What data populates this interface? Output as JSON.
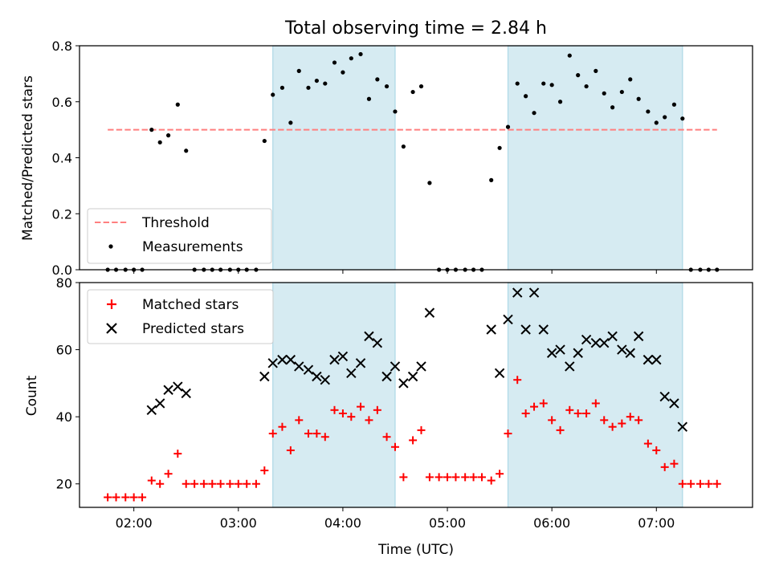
{
  "figure_title": "Total observing time = 2.84 h",
  "colors": {
    "shade": "#add8e6",
    "threshold": "#ff7f7f",
    "measurement": "#000000",
    "matched": "#ff0000",
    "predicted": "#000000"
  },
  "chart_data": [
    {
      "type": "scatter",
      "title": "Total observing time = 2.84 h",
      "xlabel": "",
      "ylabel": "Matched/Predicted stars",
      "x_unit": "hour (UTC)",
      "xlim": [
        1.48,
        7.92
      ],
      "ylim": [
        0,
        0.8
      ],
      "y_ticks": [
        "0.0",
        "0.2",
        "0.4",
        "0.6",
        "0.8"
      ],
      "shaded_intervals": [
        [
          3.33,
          4.5
        ],
        [
          5.58,
          7.25
        ]
      ],
      "legend": {
        "position": "lower left",
        "entries": [
          "Threshold",
          "Measurements"
        ]
      },
      "threshold": {
        "name": "Threshold",
        "value": 0.5,
        "x_range": [
          1.75,
          7.58
        ],
        "style": "dashed"
      },
      "series": [
        {
          "name": "Measurements",
          "marker": "dot",
          "points": [
            [
              1.75,
              0.0
            ],
            [
              1.83,
              0.0
            ],
            [
              1.92,
              0.0
            ],
            [
              2.0,
              0.0
            ],
            [
              2.08,
              0.0
            ],
            [
              2.17,
              0.5
            ],
            [
              2.25,
              0.455
            ],
            [
              2.33,
              0.48
            ],
            [
              2.42,
              0.59
            ],
            [
              2.5,
              0.425
            ],
            [
              2.58,
              0.0
            ],
            [
              2.67,
              0.0
            ],
            [
              2.75,
              0.0
            ],
            [
              2.83,
              0.0
            ],
            [
              2.92,
              0.0
            ],
            [
              3.0,
              0.0
            ],
            [
              3.08,
              0.0
            ],
            [
              3.17,
              0.0
            ],
            [
              3.25,
              0.46
            ],
            [
              3.33,
              0.625
            ],
            [
              3.42,
              0.65
            ],
            [
              3.5,
              0.525
            ],
            [
              3.58,
              0.71
            ],
            [
              3.67,
              0.65
            ],
            [
              3.75,
              0.675
            ],
            [
              3.83,
              0.665
            ],
            [
              3.92,
              0.74
            ],
            [
              4.0,
              0.705
            ],
            [
              4.08,
              0.755
            ],
            [
              4.17,
              0.77
            ],
            [
              4.25,
              0.61
            ],
            [
              4.33,
              0.68
            ],
            [
              4.42,
              0.655
            ],
            [
              4.5,
              0.565
            ],
            [
              4.58,
              0.44
            ],
            [
              4.67,
              0.635
            ],
            [
              4.75,
              0.655
            ],
            [
              4.83,
              0.31
            ],
            [
              4.92,
              0.0
            ],
            [
              5.0,
              0.0
            ],
            [
              5.08,
              0.0
            ],
            [
              5.17,
              0.0
            ],
            [
              5.25,
              0.0
            ],
            [
              5.33,
              0.0
            ],
            [
              5.42,
              0.32
            ],
            [
              5.5,
              0.435
            ],
            [
              5.58,
              0.51
            ],
            [
              5.67,
              0.665
            ],
            [
              5.75,
              0.62
            ],
            [
              5.83,
              0.56
            ],
            [
              5.92,
              0.665
            ],
            [
              6.0,
              0.66
            ],
            [
              6.08,
              0.6
            ],
            [
              6.17,
              0.765
            ],
            [
              6.25,
              0.695
            ],
            [
              6.33,
              0.655
            ],
            [
              6.42,
              0.71
            ],
            [
              6.5,
              0.63
            ],
            [
              6.58,
              0.58
            ],
            [
              6.67,
              0.635
            ],
            [
              6.75,
              0.68
            ],
            [
              6.83,
              0.61
            ],
            [
              6.92,
              0.565
            ],
            [
              7.0,
              0.525
            ],
            [
              7.08,
              0.545
            ],
            [
              7.17,
              0.59
            ],
            [
              7.25,
              0.54
            ],
            [
              7.33,
              0.0
            ],
            [
              7.42,
              0.0
            ],
            [
              7.5,
              0.0
            ],
            [
              7.58,
              0.0
            ]
          ]
        }
      ]
    },
    {
      "type": "scatter",
      "title": "",
      "xlabel": "Time (UTC)",
      "ylabel": "Count",
      "x_unit": "hour (UTC)",
      "xlim": [
        1.48,
        7.92
      ],
      "ylim": [
        13,
        80
      ],
      "x_ticks": [
        {
          "value": 2,
          "label": "02:00"
        },
        {
          "value": 3,
          "label": "03:00"
        },
        {
          "value": 4,
          "label": "04:00"
        },
        {
          "value": 5,
          "label": "05:00"
        },
        {
          "value": 6,
          "label": "06:00"
        },
        {
          "value": 7,
          "label": "07:00"
        }
      ],
      "y_ticks": [
        "20",
        "40",
        "60",
        "80"
      ],
      "shaded_intervals": [
        [
          3.33,
          4.5
        ],
        [
          5.58,
          7.25
        ]
      ],
      "legend": {
        "position": "upper left",
        "entries": [
          "Matched stars",
          "Predicted stars"
        ]
      },
      "series": [
        {
          "name": "Matched stars",
          "marker": "plus",
          "points": [
            [
              1.75,
              16
            ],
            [
              1.83,
              16
            ],
            [
              1.92,
              16
            ],
            [
              2.0,
              16
            ],
            [
              2.08,
              16
            ],
            [
              2.17,
              21
            ],
            [
              2.25,
              20
            ],
            [
              2.33,
              23
            ],
            [
              2.42,
              29
            ],
            [
              2.5,
              20
            ],
            [
              2.58,
              20
            ],
            [
              2.67,
              20
            ],
            [
              2.75,
              20
            ],
            [
              2.83,
              20
            ],
            [
              2.92,
              20
            ],
            [
              3.0,
              20
            ],
            [
              3.08,
              20
            ],
            [
              3.17,
              20
            ],
            [
              3.25,
              24
            ],
            [
              3.33,
              35
            ],
            [
              3.42,
              37
            ],
            [
              3.5,
              30
            ],
            [
              3.58,
              39
            ],
            [
              3.67,
              35
            ],
            [
              3.75,
              35
            ],
            [
              3.83,
              34
            ],
            [
              3.92,
              42
            ],
            [
              4.0,
              41
            ],
            [
              4.08,
              40
            ],
            [
              4.17,
              43
            ],
            [
              4.25,
              39
            ],
            [
              4.33,
              42
            ],
            [
              4.42,
              34
            ],
            [
              4.5,
              31
            ],
            [
              4.58,
              22
            ],
            [
              4.67,
              33
            ],
            [
              4.75,
              36
            ],
            [
              4.83,
              22
            ],
            [
              4.92,
              22
            ],
            [
              5.0,
              22
            ],
            [
              5.08,
              22
            ],
            [
              5.17,
              22
            ],
            [
              5.25,
              22
            ],
            [
              5.33,
              22
            ],
            [
              5.42,
              21
            ],
            [
              5.5,
              23
            ],
            [
              5.58,
              35
            ],
            [
              5.67,
              51
            ],
            [
              5.75,
              41
            ],
            [
              5.83,
              43
            ],
            [
              5.92,
              44
            ],
            [
              6.0,
              39
            ],
            [
              6.08,
              36
            ],
            [
              6.17,
              42
            ],
            [
              6.25,
              41
            ],
            [
              6.33,
              41
            ],
            [
              6.42,
              44
            ],
            [
              6.5,
              39
            ],
            [
              6.58,
              37
            ],
            [
              6.67,
              38
            ],
            [
              6.75,
              40
            ],
            [
              6.83,
              39
            ],
            [
              6.92,
              32
            ],
            [
              7.0,
              30
            ],
            [
              7.08,
              25
            ],
            [
              7.17,
              26
            ],
            [
              7.25,
              20
            ],
            [
              7.33,
              20
            ],
            [
              7.42,
              20
            ],
            [
              7.5,
              20
            ],
            [
              7.58,
              20
            ]
          ]
        },
        {
          "name": "Predicted stars",
          "marker": "x",
          "points": [
            [
              2.17,
              42
            ],
            [
              2.25,
              44
            ],
            [
              2.33,
              48
            ],
            [
              2.42,
              49
            ],
            [
              2.5,
              47
            ],
            [
              3.25,
              52
            ],
            [
              3.33,
              56
            ],
            [
              3.42,
              57
            ],
            [
              3.5,
              57
            ],
            [
              3.58,
              55
            ],
            [
              3.67,
              54
            ],
            [
              3.75,
              52
            ],
            [
              3.83,
              51
            ],
            [
              3.92,
              57
            ],
            [
              4.0,
              58
            ],
            [
              4.08,
              53
            ],
            [
              4.17,
              56
            ],
            [
              4.25,
              64
            ],
            [
              4.33,
              62
            ],
            [
              4.42,
              52
            ],
            [
              4.5,
              55
            ],
            [
              4.58,
              50
            ],
            [
              4.67,
              52
            ],
            [
              4.75,
              55
            ],
            [
              4.83,
              71
            ],
            [
              5.42,
              66
            ],
            [
              5.5,
              53
            ],
            [
              5.58,
              69
            ],
            [
              5.67,
              77
            ],
            [
              5.75,
              66
            ],
            [
              5.83,
              77
            ],
            [
              5.92,
              66
            ],
            [
              6.0,
              59
            ],
            [
              6.08,
              60
            ],
            [
              6.17,
              55
            ],
            [
              6.25,
              59
            ],
            [
              6.33,
              63
            ],
            [
              6.42,
              62
            ],
            [
              6.5,
              62
            ],
            [
              6.58,
              64
            ],
            [
              6.67,
              60
            ],
            [
              6.75,
              59
            ],
            [
              6.83,
              64
            ],
            [
              6.92,
              57
            ],
            [
              7.0,
              57
            ],
            [
              7.08,
              46
            ],
            [
              7.17,
              44
            ],
            [
              7.25,
              37
            ]
          ]
        }
      ]
    }
  ]
}
